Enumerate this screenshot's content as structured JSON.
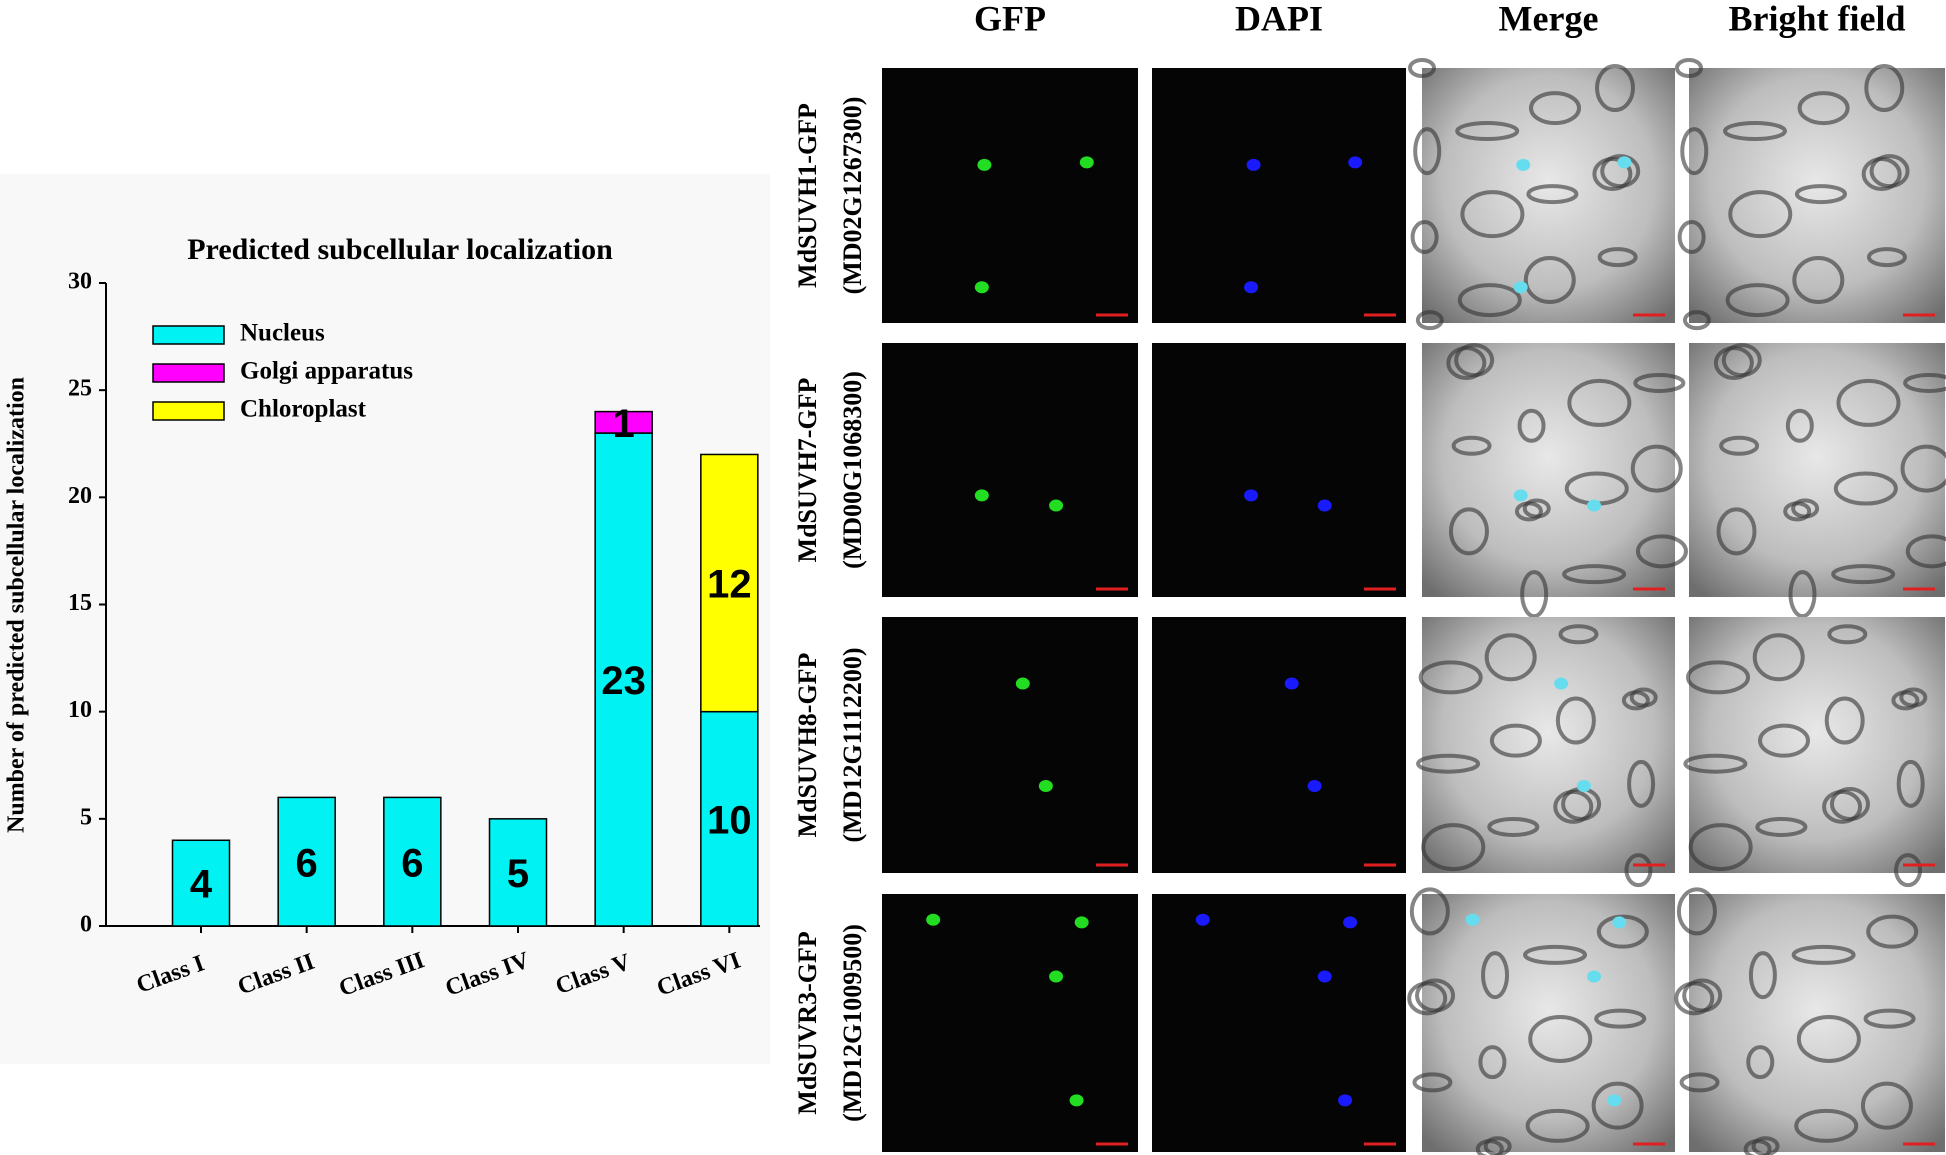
{
  "chart_data": {
    "type": "stacked-bar",
    "title": "Predicted subcellular localization",
    "y_label": "Number of predicted subcellular localization",
    "categories": [
      "Class I",
      "Class II",
      "Class III",
      "Class IV",
      "Class V",
      "Class VI"
    ],
    "series": [
      {
        "name": "Nucleus",
        "color": "#00f2f2",
        "values": [
          4,
          6,
          6,
          5,
          23,
          10
        ]
      },
      {
        "name": "Golgi apparatus",
        "color": "#ff00ff",
        "values": [
          null,
          null,
          null,
          null,
          1,
          null
        ]
      },
      {
        "name": "Chloroplast",
        "color": "#ffff00",
        "values": [
          null,
          null,
          null,
          null,
          null,
          12
        ]
      }
    ],
    "ylim": [
      0,
      30
    ],
    "yticks": [
      0,
      5,
      10,
      15,
      20,
      25,
      30
    ],
    "legend": "upper-left"
  },
  "panels": {
    "columns": [
      "GFP",
      "DAPI",
      "Merge",
      "Bright field"
    ],
    "rows": [
      {
        "name": "MdSUVH1-GFP",
        "id": "(MD02G1267300)"
      },
      {
        "name": "MdSUVH7-GFP",
        "id": "(MD00G1068300)"
      },
      {
        "name": "MdSUVH8-GFP",
        "id": "(MD12G1112200)"
      },
      {
        "name": "MdSUVR3-GFP",
        "id": "(MD12G1009500)"
      }
    ]
  }
}
